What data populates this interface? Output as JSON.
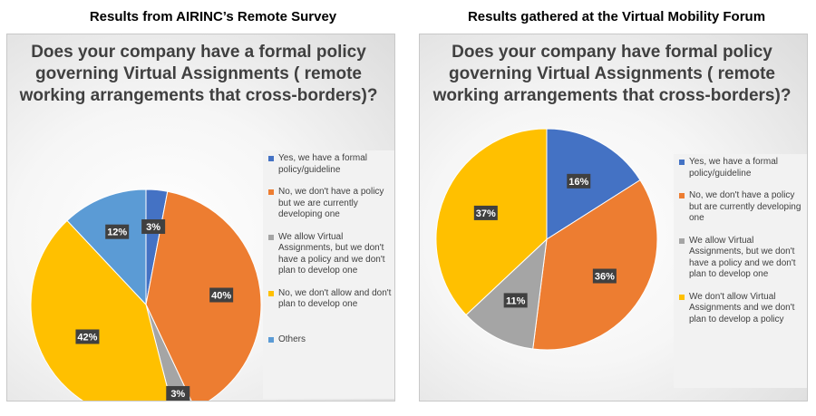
{
  "panels": [
    {
      "panel_title": "Results from AIRINC’s Remote Survey",
      "heading": "Does your company have a formal policy governing Virtual Assignments ( remote working arrangements that cross-borders)?",
      "legend": [
        {
          "label": "Yes, we have a formal policy/guideline",
          "color": "#4472C4"
        },
        {
          "label": "No, we don't have a policy but we are currently developing one",
          "color": "#ED7D31"
        },
        {
          "label": "We allow Virtual Assignments, but we don't have a policy and we don't plan to develop one",
          "color": "#A5A5A5"
        },
        {
          "label": "No, we don't allow and don't plan to develop one",
          "color": "#FFC000"
        },
        {
          "label": "Others",
          "color": "#5B9BD5"
        }
      ]
    },
    {
      "panel_title": "Results gathered at the Virtual Mobility Forum",
      "heading": "Does your company have formal policy governing Virtual Assignments ( remote working arrangements that cross-borders)?",
      "legend": [
        {
          "label": "Yes, we have a formal policy/guideline",
          "color": "#4472C4"
        },
        {
          "label": "No, we don't have a policy but are currently developing one",
          "color": "#ED7D31"
        },
        {
          "label": "We allow Virtual Assignments, but we don't have a policy and we don't plan to develop one",
          "color": "#A5A5A5"
        },
        {
          "label": "We don't allow Virtual Assignments and we don't plan to develop a policy",
          "color": "#FFC000"
        }
      ]
    }
  ],
  "chart_data": [
    {
      "type": "pie",
      "title": "Does your company have a formal policy governing Virtual Assignments ( remote working arrangements that cross-borders)?",
      "categories": [
        "Yes, we have a formal policy/guideline",
        "No, we don't have a policy but we are currently developing one",
        "We allow Virtual Assignments, but we don't have a policy and we don't plan to develop one",
        "No, we don't allow and don't plan to develop one",
        "Others"
      ],
      "values": [
        3,
        40,
        3,
        42,
        12
      ],
      "labels": [
        "3%",
        "40%",
        "3%",
        "42%",
        "12%"
      ],
      "colors": [
        "#4472C4",
        "#ED7D31",
        "#A5A5A5",
        "#FFC000",
        "#5B9BD5"
      ],
      "legend_position": "right"
    },
    {
      "type": "pie",
      "title": "Does your company have formal policy governing Virtual Assignments ( remote working arrangements that cross-borders)?",
      "categories": [
        "Yes, we have a formal policy/guideline",
        "No, we don't have a policy but are currently developing one",
        "We allow Virtual Assignments, but we don't have a policy and we don't plan to develop one",
        "We don't allow Virtual Assignments and we don't plan to develop a policy"
      ],
      "values": [
        16,
        36,
        11,
        37
      ],
      "labels": [
        "16%",
        "36%",
        "11%",
        "37%"
      ],
      "colors": [
        "#4472C4",
        "#ED7D31",
        "#A5A5A5",
        "#FFC000"
      ],
      "legend_position": "right"
    }
  ]
}
